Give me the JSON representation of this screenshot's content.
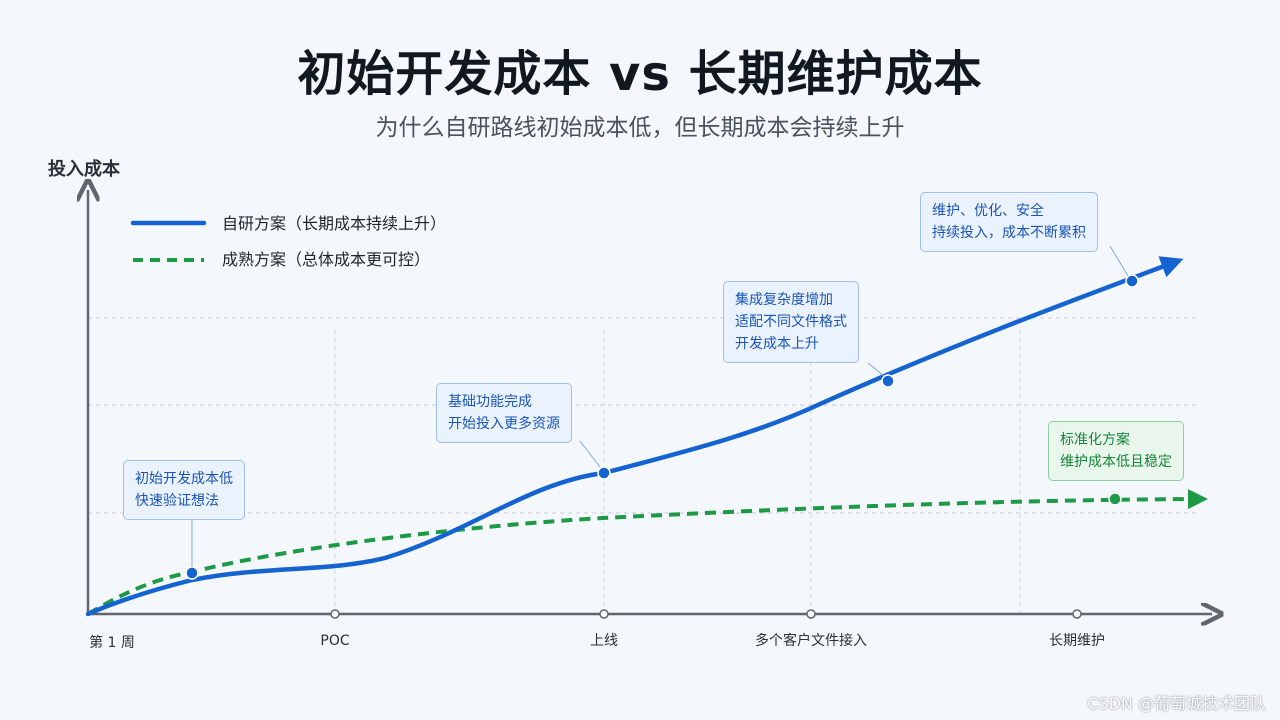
{
  "header": {
    "title": "初始开发成本 vs 长期维护成本",
    "subtitle": "为什么自研路线初始成本低，但长期成本会持续上升"
  },
  "colors": {
    "self_built": "#1463d0",
    "mature": "#1c9a45",
    "axis": "#5f666e",
    "grid": "#c9ced4"
  },
  "chart_data": {
    "type": "line",
    "ylabel": "投入成本",
    "xlabel": "",
    "x_ticks": [
      "第 1 周",
      "POC",
      "上线",
      "多个客户文件接入",
      "长期维护"
    ],
    "legend": {
      "placement": "top-left",
      "entries": [
        "自研方案（长期成本持续上升）",
        "成熟方案（总体成本更可控）"
      ]
    },
    "grid": "horizontal-dashed",
    "y_axis_ticks_labeled": false,
    "series": [
      {
        "name": "自研方案（长期成本持续上升）",
        "line_style": "solid",
        "values_relative": [
          0,
          0.06,
          0.11,
          0.13,
          0.17,
          0.26,
          0.33,
          0.39,
          0.47,
          0.57,
          0.65,
          0.7
        ]
      },
      {
        "name": "成熟方案（总体成本更可控）",
        "line_style": "dashed",
        "values_relative": [
          0,
          0.1,
          0.14,
          0.17,
          0.2,
          0.22,
          0.24,
          0.25,
          0.26,
          0.27,
          0.275,
          0.28
        ]
      }
    ],
    "annotations": [
      {
        "series": 0,
        "lines": [
          "初始开发成本低",
          "快速验证想法"
        ]
      },
      {
        "series": 0,
        "lines": [
          "基础功能完成",
          "开始投入更多资源"
        ]
      },
      {
        "series": 0,
        "lines": [
          "集成复杂度增加",
          "适配不同文件格式",
          "开发成本上升"
        ]
      },
      {
        "series": 0,
        "lines": [
          "维护、优化、安全",
          "持续投入，成本不断累积"
        ]
      },
      {
        "series": 1,
        "lines": [
          "标准化方案",
          "维护成本低且稳定"
        ]
      }
    ]
  },
  "watermark": "CSDN @葡萄城技术团队"
}
